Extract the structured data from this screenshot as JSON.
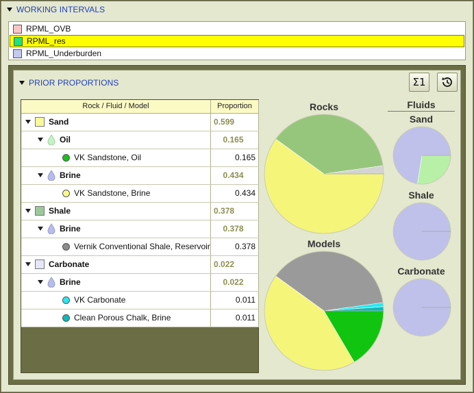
{
  "working_intervals": {
    "title": "WORKING INTERVALS",
    "items": [
      {
        "label": "RPML_OVB",
        "color": "#f7c6c6",
        "selected": false
      },
      {
        "label": "RPML_res",
        "color": "#22e07a",
        "selected": true
      },
      {
        "label": "RPML_Underburden",
        "color": "#c5c9ef",
        "selected": false
      }
    ]
  },
  "prior_proportions": {
    "title": "PRIOR PROPORTIONS",
    "sum_button": "Σ1",
    "reset_icon": "history-reset-icon",
    "table": {
      "headers": [
        "Rock / Fluid / Model",
        "Proportion"
      ],
      "rows": [
        {
          "level": 0,
          "label": "Sand",
          "value": "0.599",
          "color": "#fafa9a"
        },
        {
          "level": 1,
          "label": "Oil",
          "value": "0.165",
          "color": "#c8f0c8"
        },
        {
          "level": 2,
          "label": "VK Sandstone, Oil",
          "value": "0.165",
          "color": "#1cc01c"
        },
        {
          "level": 1,
          "label": "Brine",
          "value": "0.434",
          "color": "#b8bce8"
        },
        {
          "level": 2,
          "label": "VK Sandstone, Brine",
          "value": "0.434",
          "color": "#fafa8a"
        },
        {
          "level": 0,
          "label": "Shale",
          "value": "0.378",
          "color": "#9cc89c"
        },
        {
          "level": 1,
          "label": "Brine",
          "value": "0.378",
          "color": "#b8bce8"
        },
        {
          "level": 2,
          "label": "Vernik Conventional Shale, Reservoir",
          "value": "0.378",
          "color": "#8c8c8c"
        },
        {
          "level": 0,
          "label": "Carbonate",
          "value": "0.022",
          "color": "#e6e6f8"
        },
        {
          "level": 1,
          "label": "Brine",
          "value": "0.022",
          "color": "#b8bce8"
        },
        {
          "level": 2,
          "label": "VK Carbonate",
          "value": "0.011",
          "color": "#28e8f0"
        },
        {
          "level": 2,
          "label": "Clean Porous Chalk, Brine",
          "value": "0.011",
          "color": "#10b8b8"
        }
      ]
    },
    "charts": {
      "rocks_title": "Rocks",
      "models_title": "Models",
      "fluids_title": "Fluids",
      "fluid_labels": [
        "Sand",
        "Shale",
        "Carbonate"
      ]
    }
  },
  "chart_data": [
    {
      "type": "pie",
      "title": "Rocks",
      "labels": [
        "Sand",
        "Shale",
        "Carbonate"
      ],
      "values": [
        0.599,
        0.378,
        0.022
      ],
      "colors": [
        "#f5f57a",
        "#96c67c",
        "#d4d4d4"
      ]
    },
    {
      "type": "pie",
      "title": "Models",
      "labels": [
        "VK Sandstone, Oil",
        "VK Sandstone, Brine",
        "Vernik Conventional Shale, Reservoir",
        "VK Carbonate",
        "Clean Porous Chalk, Brine"
      ],
      "values": [
        0.165,
        0.434,
        0.378,
        0.011,
        0.011
      ],
      "colors": [
        "#10c410",
        "#f5f57a",
        "#9a9a9a",
        "#28e8f0",
        "#10b8b8"
      ]
    },
    {
      "type": "pie",
      "title": "Sand",
      "labels": [
        "Oil",
        "Brine"
      ],
      "values": [
        0.275,
        0.725
      ],
      "colors": [
        "#b8f0a8",
        "#bfc1ea"
      ]
    },
    {
      "type": "pie",
      "title": "Shale",
      "labels": [
        "Brine"
      ],
      "values": [
        1.0
      ],
      "colors": [
        "#bfc1ea"
      ]
    },
    {
      "type": "pie",
      "title": "Carbonate",
      "labels": [
        "Brine"
      ],
      "values": [
        1.0
      ],
      "colors": [
        "#bfc1ea"
      ]
    }
  ]
}
